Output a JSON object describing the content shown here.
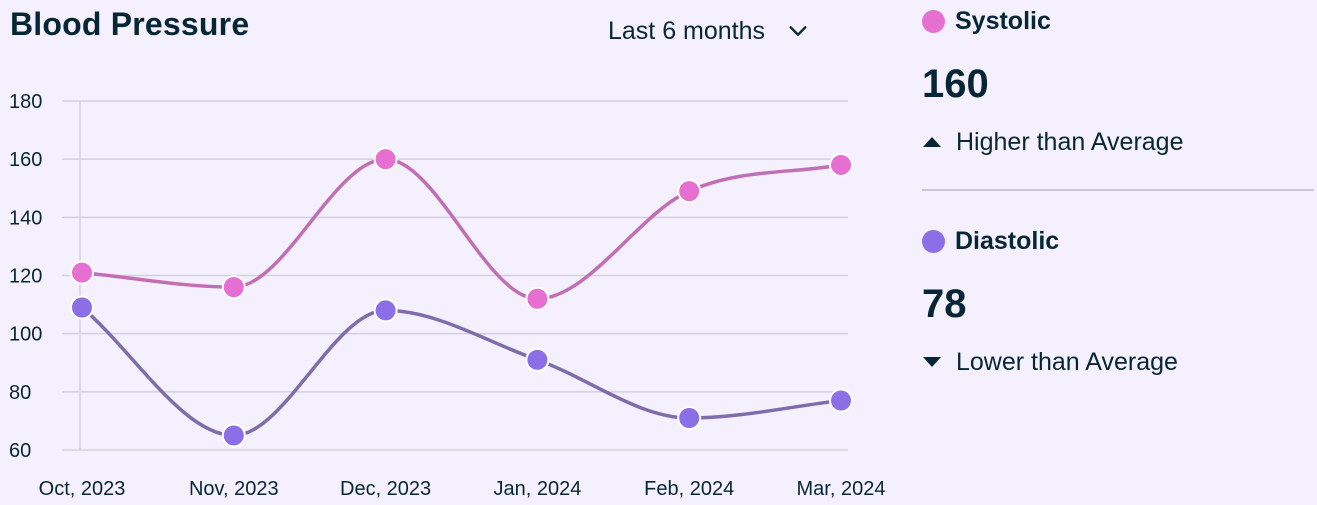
{
  "header": {
    "title": "Blood Pressure",
    "range_label": "Last 6 months",
    "range_icon": "chevron-down-icon"
  },
  "chart_data": {
    "type": "line",
    "title": "Blood Pressure",
    "xlabel": "",
    "ylabel": "",
    "categories": [
      "Oct, 2023",
      "Nov, 2023",
      "Dec, 2023",
      "Jan, 2024",
      "Feb, 2024",
      "Mar, 2024"
    ],
    "ylim": [
      60,
      180
    ],
    "yticks": [
      60,
      80,
      100,
      120,
      140,
      160,
      180
    ],
    "grid": true,
    "smooth": true,
    "series": [
      {
        "name": "Systolic",
        "color": "#c26eb4",
        "marker_color": "#e66fd2",
        "values": [
          121,
          116,
          160,
          112,
          149,
          158
        ]
      },
      {
        "name": "Diastolic",
        "color": "#7e6cab",
        "marker_color": "#8c6fe6",
        "values": [
          109,
          65,
          108,
          91,
          71,
          77
        ]
      }
    ]
  },
  "summary": {
    "systolic": {
      "label": "Systolic",
      "value": "160",
      "trend": "Higher than Average",
      "trend_icon": "arrow-up-icon",
      "color": "#e66fd2"
    },
    "diastolic": {
      "label": "Diastolic",
      "value": "78",
      "trend": "Lower than Average",
      "trend_icon": "arrow-down-icon",
      "color": "#8c6fe6"
    }
  }
}
